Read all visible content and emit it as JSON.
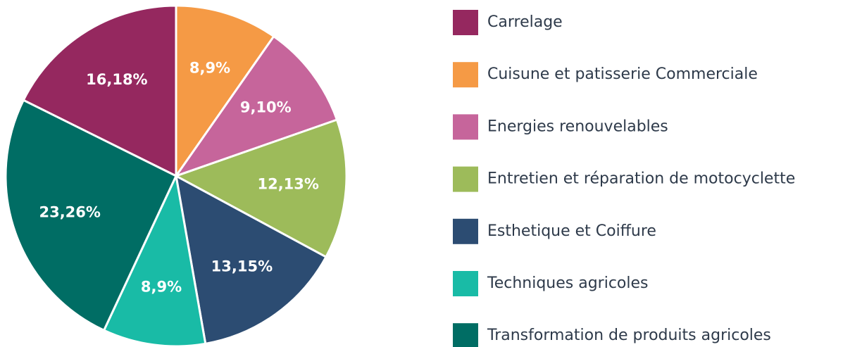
{
  "chart_data": {
    "type": "pie",
    "categories": [
      "Carrelage",
      "Cuisune et patisserie Commerciale",
      "Energies renouvelables",
      "Entretien et réparation de motocyclette",
      "Esthetique et Coiffure",
      "Techniques agricoles",
      "Transformation de produits agricoles"
    ],
    "values": [
      16.18,
      8.9,
      9.1,
      12.13,
      13.15,
      8.9,
      23.26
    ],
    "value_labels": [
      "16,18%",
      "8,9%",
      "9,10%",
      "12,13%",
      "13,15%",
      "8,9%",
      "23,26%"
    ],
    "colors": [
      "#95285f",
      "#f59a45",
      "#c6659b",
      "#9dbb5a",
      "#2c4c72",
      "#19bba6",
      "#006d64"
    ],
    "legend": "right"
  }
}
